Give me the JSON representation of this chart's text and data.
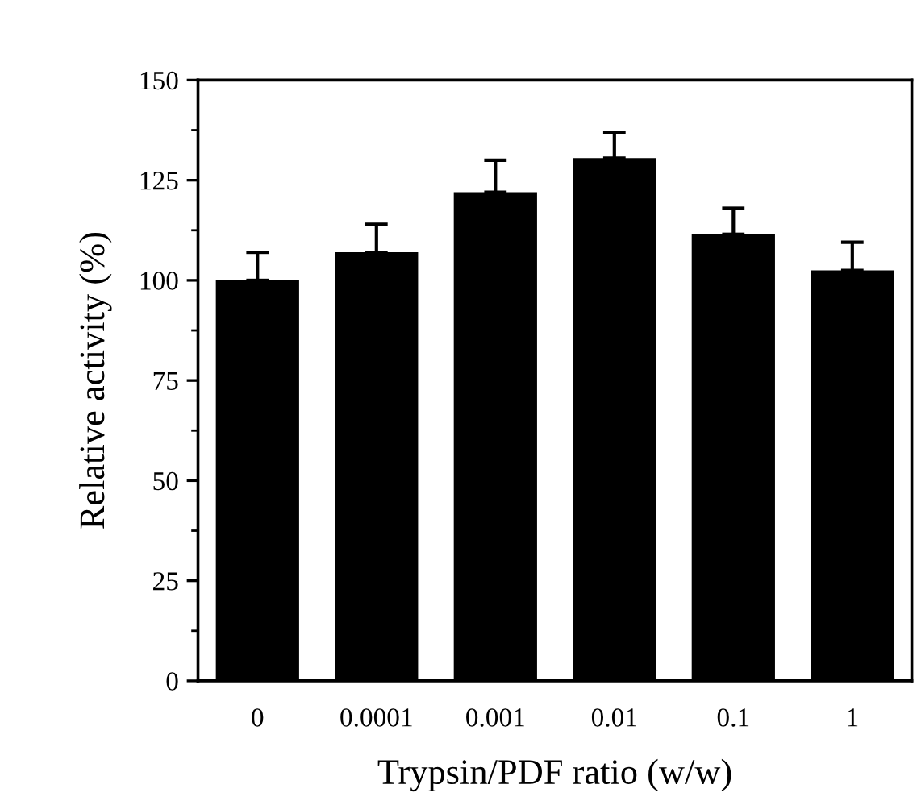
{
  "chart_data": {
    "type": "bar",
    "xlabel": "Trypsin/PDF ratio (w/w)",
    "ylabel": "Relative activity (%)",
    "categories": [
      "0",
      "0.0001",
      "0.001",
      "0.01",
      "0.1",
      "1"
    ],
    "series": [
      {
        "color": "#000000",
        "values": [
          100,
          107,
          122,
          130.5,
          111.5,
          102.5
        ],
        "errors": [
          [
            100,
            107
          ],
          [
            107,
            114
          ],
          [
            122,
            130
          ],
          [
            130.5,
            137
          ],
          [
            111.5,
            118
          ],
          [
            102.5,
            109.5
          ]
        ]
      }
    ],
    "ylim": [
      0,
      150
    ],
    "yticks": [
      0,
      25,
      50,
      75,
      100,
      125,
      150
    ],
    "grid": false
  }
}
